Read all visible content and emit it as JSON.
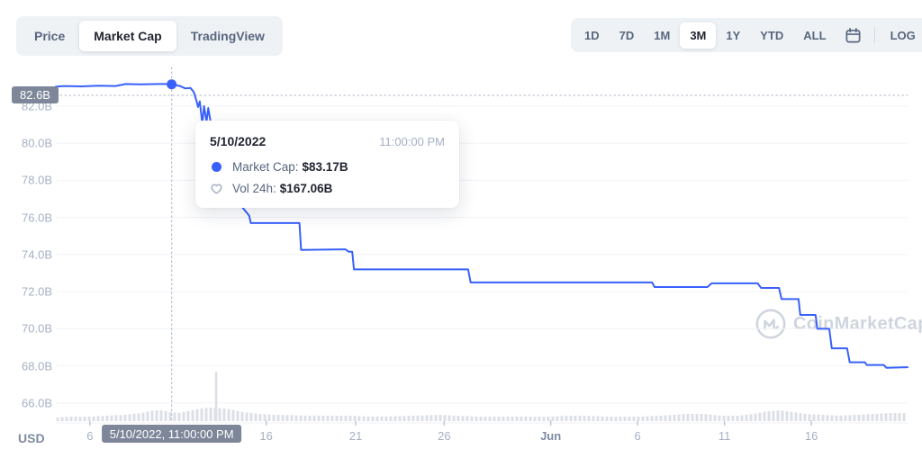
{
  "header": {
    "chart_type_tabs": [
      {
        "label": "Price",
        "selected": false
      },
      {
        "label": "Market Cap",
        "selected": true
      },
      {
        "label": "TradingView",
        "selected": false
      }
    ],
    "range_buttons": [
      {
        "label": "1D",
        "selected": false
      },
      {
        "label": "7D",
        "selected": false
      },
      {
        "label": "1M",
        "selected": false
      },
      {
        "label": "3M",
        "selected": true
      },
      {
        "label": "1Y",
        "selected": false
      },
      {
        "label": "YTD",
        "selected": false
      },
      {
        "label": "ALL",
        "selected": false
      }
    ],
    "log_label": "LOG"
  },
  "tooltip": {
    "date": "5/10/2022",
    "time": "11:00:00 PM",
    "rows": [
      {
        "icon": "market-cap-dot",
        "label": "Market Cap:",
        "value": "$83.17B"
      },
      {
        "icon": "volume-heart",
        "label": "Vol 24h:",
        "value": "$167.06B"
      }
    ]
  },
  "axes": {
    "y_unit_label": "USD",
    "y_cursor_badge": "82.6B",
    "x_cursor_badge": "5/10/2022, 11:00:00 PM"
  },
  "watermark": {
    "text": "CoinMarketCap"
  },
  "colors": {
    "accent_blue": "#3861fb",
    "badge_bg": "#7d8799",
    "grid": "#f0f2f6",
    "axis_text": "#a6b0c3",
    "volume_bar": "#dcdfe6",
    "crosshair": "#b7bfcc",
    "tick": "#c2c9d4"
  },
  "chart_data": {
    "type": "line",
    "name": "Market Cap (3M view, USD)",
    "ylim": [
      64.93,
      84.08
    ],
    "yticks": [
      {
        "value": 82,
        "label": "82.0B"
      },
      {
        "value": 80,
        "label": "80.0B"
      },
      {
        "value": 78,
        "label": "78.0B"
      },
      {
        "value": 76,
        "label": "76.0B"
      },
      {
        "value": 74,
        "label": "74.0B"
      },
      {
        "value": 72,
        "label": "72.0B"
      },
      {
        "value": 70,
        "label": "70.0B"
      },
      {
        "value": 68,
        "label": "68.0B"
      },
      {
        "value": 66,
        "label": "66.0B"
      }
    ],
    "xticks": [
      {
        "f": 0.04,
        "label": "6",
        "bold": false
      },
      {
        "f": 0.247,
        "label": "16",
        "bold": false
      },
      {
        "f": 0.352,
        "label": "21",
        "bold": false
      },
      {
        "f": 0.456,
        "label": "26",
        "bold": false
      },
      {
        "f": 0.581,
        "label": "Jun",
        "bold": true
      },
      {
        "f": 0.683,
        "label": "6",
        "bold": false
      },
      {
        "f": 0.785,
        "label": "11",
        "bold": false
      },
      {
        "f": 0.887,
        "label": "16",
        "bold": false
      }
    ],
    "series": [
      {
        "name": "Market Cap",
        "color": "#3861fb",
        "unit": "billions USD",
        "points": [
          [
            0.0,
            83.05
          ],
          [
            0.01,
            83.08
          ],
          [
            0.03,
            83.06
          ],
          [
            0.05,
            83.1
          ],
          [
            0.07,
            83.08
          ],
          [
            0.082,
            83.19
          ],
          [
            0.1,
            83.17
          ],
          [
            0.12,
            83.19
          ],
          [
            0.13,
            83.19
          ],
          [
            0.136,
            83.17
          ],
          [
            0.146,
            83.08
          ],
          [
            0.152,
            82.95
          ],
          [
            0.158,
            82.98
          ],
          [
            0.162,
            82.75
          ],
          [
            0.165,
            82.3
          ],
          [
            0.167,
            81.95
          ],
          [
            0.169,
            82.25
          ],
          [
            0.172,
            81.05
          ],
          [
            0.174,
            82.0
          ],
          [
            0.177,
            81.15
          ],
          [
            0.179,
            81.9
          ],
          [
            0.183,
            80.8
          ],
          [
            0.193,
            79.4
          ],
          [
            0.205,
            77.9
          ],
          [
            0.218,
            76.6
          ],
          [
            0.227,
            76.1
          ],
          [
            0.229,
            75.7
          ],
          [
            0.286,
            75.7
          ],
          [
            0.288,
            74.25
          ],
          [
            0.34,
            74.28
          ],
          [
            0.344,
            74.15
          ],
          [
            0.348,
            74.15
          ],
          [
            0.35,
            73.2
          ],
          [
            0.484,
            73.2
          ],
          [
            0.487,
            72.5
          ],
          [
            0.7,
            72.5
          ],
          [
            0.703,
            72.25
          ],
          [
            0.765,
            72.25
          ],
          [
            0.77,
            72.45
          ],
          [
            0.824,
            72.45
          ],
          [
            0.828,
            72.2
          ],
          [
            0.849,
            72.2
          ],
          [
            0.852,
            71.6
          ],
          [
            0.872,
            71.6
          ],
          [
            0.874,
            70.75
          ],
          [
            0.892,
            70.75
          ],
          [
            0.894,
            70.0
          ],
          [
            0.908,
            70.0
          ],
          [
            0.911,
            68.95
          ],
          [
            0.929,
            68.95
          ],
          [
            0.932,
            68.2
          ],
          [
            0.95,
            68.2
          ],
          [
            0.952,
            68.05
          ],
          [
            0.972,
            68.05
          ],
          [
            0.975,
            67.9
          ],
          [
            1.0,
            67.93
          ]
        ]
      }
    ],
    "volume_profile": [
      [
        0.0,
        4
      ],
      [
        0.02,
        5
      ],
      [
        0.04,
        5
      ],
      [
        0.06,
        6
      ],
      [
        0.08,
        7
      ],
      [
        0.1,
        9
      ],
      [
        0.115,
        12
      ],
      [
        0.125,
        12
      ],
      [
        0.135,
        10
      ],
      [
        0.145,
        9
      ],
      [
        0.15,
        10
      ],
      [
        0.16,
        12
      ],
      [
        0.17,
        14
      ],
      [
        0.18,
        15
      ],
      [
        0.2,
        14
      ],
      [
        0.21,
        12
      ],
      [
        0.22,
        10
      ],
      [
        0.24,
        8
      ],
      [
        0.26,
        7
      ],
      [
        0.3,
        6
      ],
      [
        0.34,
        6
      ],
      [
        0.38,
        5
      ],
      [
        0.42,
        6
      ],
      [
        0.45,
        7
      ],
      [
        0.47,
        6
      ],
      [
        0.5,
        5
      ],
      [
        0.54,
        5
      ],
      [
        0.58,
        5
      ],
      [
        0.6,
        6
      ],
      [
        0.62,
        6
      ],
      [
        0.65,
        5
      ],
      [
        0.68,
        5
      ],
      [
        0.71,
        6
      ],
      [
        0.74,
        8
      ],
      [
        0.76,
        8
      ],
      [
        0.78,
        6
      ],
      [
        0.8,
        6
      ],
      [
        0.82,
        8
      ],
      [
        0.835,
        11
      ],
      [
        0.85,
        12
      ],
      [
        0.865,
        10
      ],
      [
        0.88,
        8
      ],
      [
        0.9,
        7
      ],
      [
        0.92,
        6
      ],
      [
        0.94,
        7
      ],
      [
        0.96,
        8
      ],
      [
        0.98,
        9
      ],
      [
        1.0,
        9
      ]
    ],
    "volume_spike": {
      "f": 0.188,
      "h": 55
    },
    "cursor": {
      "f": 0.136,
      "value": 83.17,
      "crosshair_value": 82.58
    }
  }
}
